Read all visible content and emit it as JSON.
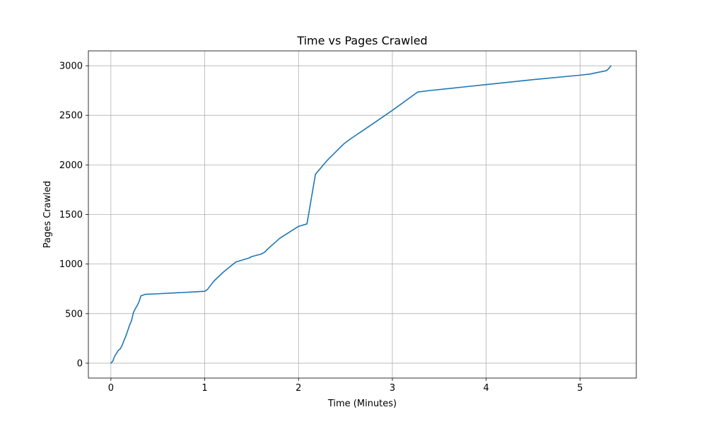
{
  "chart_data": {
    "type": "line",
    "title": "Time vs Pages Crawled",
    "xlabel": "Time (Minutes)",
    "ylabel": "Pages Crawled",
    "xlim": [
      -0.24,
      5.6
    ],
    "ylim": [
      -150,
      3150
    ],
    "x_ticks": [
      0,
      1,
      2,
      3,
      4,
      5
    ],
    "y_ticks": [
      0,
      500,
      1000,
      1500,
      2000,
      2500,
      3000
    ],
    "grid": true,
    "colors": {
      "line": "#1f77b4",
      "grid": "#b0b0b0",
      "axes": "#000000"
    },
    "series": [
      {
        "x": [
          0.0,
          0.02,
          0.04,
          0.06,
          0.08,
          0.1,
          0.12,
          0.14,
          0.16,
          0.18,
          0.2,
          0.22,
          0.24,
          0.26,
          0.28,
          0.3,
          0.32,
          0.34,
          0.35,
          0.37,
          0.5,
          0.7,
          0.9,
          1.0,
          1.03,
          1.1,
          1.2,
          1.33,
          1.4,
          1.47,
          1.5,
          1.6,
          1.64,
          1.67,
          1.8,
          2.0,
          2.09,
          2.18,
          2.3,
          2.48,
          2.55,
          2.8,
          3.0,
          3.27,
          3.4,
          3.6,
          3.8,
          4.0,
          4.5,
          5.0,
          5.1,
          5.2,
          5.28,
          5.3,
          5.33
        ],
        "y": [
          0,
          20,
          70,
          100,
          130,
          145,
          180,
          230,
          275,
          330,
          385,
          430,
          510,
          550,
          580,
          620,
          680,
          685,
          690,
          695,
          700,
          710,
          720,
          725,
          745,
          830,
          920,
          1020,
          1040,
          1060,
          1075,
          1100,
          1120,
          1150,
          1260,
          1380,
          1405,
          1905,
          2040,
          2210,
          2260,
          2420,
          2550,
          2735,
          2750,
          2770,
          2790,
          2810,
          2860,
          2905,
          2915,
          2935,
          2950,
          2965,
          3000
        ]
      }
    ]
  }
}
